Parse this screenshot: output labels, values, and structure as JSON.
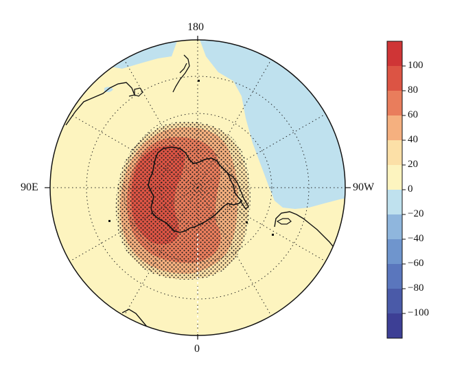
{
  "map": {
    "projection": "south polar stereographic",
    "longitude_labels": {
      "top": "180",
      "bottom": "0",
      "left": "90E",
      "right": "90W"
    }
  },
  "colorbar": {
    "tick_labels": [
      "100",
      "80",
      "60",
      "40",
      "20",
      "0",
      "−20",
      "−40",
      "−60",
      "−80",
      "−100"
    ],
    "levels": [
      -120,
      -100,
      -80,
      -60,
      -40,
      -20,
      0,
      20,
      40,
      60,
      80,
      100,
      120
    ],
    "colors": [
      "#3d3f95",
      "#4a5aa8",
      "#5a76bd",
      "#6f95cd",
      "#8fb6dd",
      "#bfe1ee",
      "#fdf4bf",
      "#fce0a7",
      "#f5b07f",
      "#e97d5c",
      "#dc5444",
      "#cf3536"
    ]
  },
  "colors": {
    "ocean_background": "#fdf4bf",
    "negative_anomaly": "#bfe1ee",
    "positive_20_40": "#fce0a7",
    "positive_40_60": "#f5b07f",
    "positive_60_80": "#e97d5c",
    "positive_80_100": "#dc5444",
    "stippling": "#1a1a1a",
    "coastline": "#111111"
  }
}
